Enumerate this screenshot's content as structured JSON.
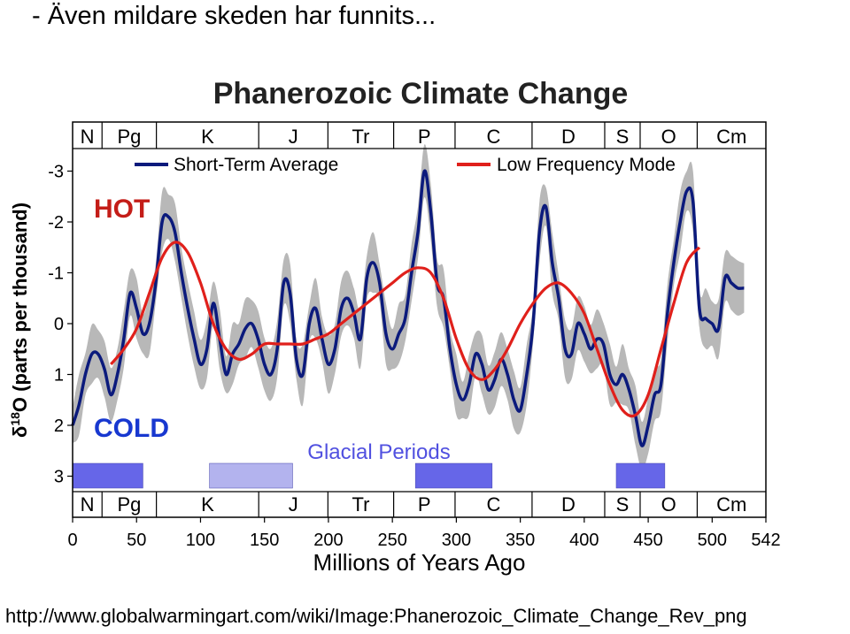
{
  "slide": {
    "title": "- Även mildare skeden har funnits...",
    "footer_url": "http://www.globalwarmingart.com/wiki/Image:Phanerozoic_Climate_Change_Rev_png"
  },
  "chart_data": {
    "type": "line",
    "title": "Phanerozoic Climate Change",
    "xlabel": "Millions of Years Ago",
    "ylabel": "δ18O (parts per thousand)",
    "xlim": [
      0,
      542
    ],
    "ylim": [
      -3.3,
      3.3
    ],
    "y_inverted": true,
    "x_ticks": [
      0,
      50,
      100,
      150,
      200,
      250,
      300,
      350,
      400,
      450,
      500,
      542
    ],
    "y_ticks": [
      -3,
      -2,
      -1,
      0,
      1,
      2,
      3
    ],
    "grid": false,
    "legend_position": "top",
    "annotations": {
      "hot": "HOT",
      "cold": "COLD",
      "glacial": "Glacial Periods"
    },
    "colors": {
      "short_term": "#0b1a7c",
      "low_freq": "#e0201b",
      "band": "#b8b8b8",
      "glacial_dark": "#6666e8",
      "glacial_light": "#b3b3ee",
      "hot": "#c41d18",
      "cold": "#1838d0",
      "glacial_text": "#5050e0"
    },
    "periods": [
      {
        "label": "N",
        "start": 0,
        "end": 23
      },
      {
        "label": "Pg",
        "start": 23,
        "end": 65.5
      },
      {
        "label": "K",
        "start": 65.5,
        "end": 145.5
      },
      {
        "label": "J",
        "start": 145.5,
        "end": 199.6
      },
      {
        "label": "Tr",
        "start": 199.6,
        "end": 251
      },
      {
        "label": "P",
        "start": 251,
        "end": 299
      },
      {
        "label": "C",
        "start": 299,
        "end": 359.2
      },
      {
        "label": "D",
        "start": 359.2,
        "end": 416
      },
      {
        "label": "S",
        "start": 416,
        "end": 443.7
      },
      {
        "label": "O",
        "start": 443.7,
        "end": 488.3
      },
      {
        "label": "Cm",
        "start": 488.3,
        "end": 542
      }
    ],
    "glacial_periods": [
      {
        "start": 0,
        "end": 55,
        "style": "dark"
      },
      {
        "start": 107,
        "end": 172,
        "style": "light"
      },
      {
        "start": 268,
        "end": 328,
        "style": "dark"
      },
      {
        "start": 425,
        "end": 463,
        "style": "dark"
      }
    ],
    "series": [
      {
        "name": "Short-Term Average",
        "x": [
          0,
          5,
          10,
          15,
          20,
          25,
          30,
          35,
          40,
          45,
          50,
          55,
          60,
          65,
          70,
          75,
          80,
          85,
          90,
          95,
          100,
          105,
          110,
          115,
          120,
          125,
          130,
          135,
          140,
          145,
          150,
          155,
          160,
          165,
          170,
          175,
          180,
          185,
          190,
          195,
          200,
          205,
          210,
          215,
          220,
          225,
          230,
          235,
          240,
          245,
          250,
          255,
          260,
          265,
          270,
          275,
          280,
          285,
          290,
          295,
          300,
          305,
          310,
          315,
          320,
          325,
          330,
          335,
          340,
          345,
          350,
          355,
          360,
          365,
          370,
          375,
          380,
          385,
          390,
          395,
          400,
          405,
          410,
          415,
          420,
          425,
          430,
          435,
          440,
          445,
          450,
          455,
          460,
          465,
          470,
          475,
          480,
          485,
          490,
          495,
          500,
          505,
          510,
          515,
          520,
          525
        ],
        "y": [
          2.0,
          1.6,
          1.0,
          0.6,
          0.6,
          0.9,
          1.4,
          1.0,
          0.3,
          -0.6,
          -0.3,
          0.2,
          0.0,
          -0.8,
          -2.0,
          -2.1,
          -1.8,
          -1.0,
          -0.3,
          0.3,
          0.8,
          0.5,
          -0.4,
          0.3,
          1.0,
          0.6,
          0.4,
          0.1,
          0.0,
          0.3,
          0.8,
          1.0,
          0.5,
          -0.8,
          -0.6,
          0.7,
          1.0,
          0.0,
          -0.3,
          0.3,
          0.8,
          0.5,
          -0.3,
          -0.5,
          -0.2,
          0.3,
          -0.9,
          -1.2,
          -0.8,
          0.2,
          0.5,
          0.2,
          -0.1,
          -1.0,
          -1.8,
          -3.0,
          -2.2,
          -0.8,
          -0.5,
          0.5,
          1.2,
          1.5,
          1.2,
          0.6,
          0.8,
          1.3,
          1.1,
          0.7,
          1.0,
          1.5,
          1.7,
          1.0,
          0.0,
          -1.8,
          -2.3,
          -1.2,
          -0.5,
          0.5,
          0.6,
          0.0,
          0.2,
          0.5,
          0.3,
          0.4,
          1.0,
          1.2,
          1.0,
          1.3,
          1.8,
          2.4,
          2.0,
          1.4,
          1.2,
          -0.2,
          -1.2,
          -2.0,
          -2.6,
          -2.4,
          -0.3,
          -0.1,
          0.0,
          0.1,
          -0.9,
          -0.8,
          -0.7,
          -0.7
        ]
      },
      {
        "name": "Low Frequency Mode",
        "x": [
          30,
          40,
          50,
          60,
          70,
          80,
          90,
          100,
          110,
          120,
          130,
          140,
          150,
          160,
          170,
          180,
          190,
          200,
          210,
          220,
          230,
          240,
          250,
          260,
          270,
          280,
          290,
          300,
          310,
          320,
          330,
          340,
          350,
          360,
          370,
          380,
          390,
          400,
          410,
          420,
          430,
          440,
          450,
          460,
          470,
          480,
          490
        ],
        "y": [
          0.8,
          0.5,
          0.1,
          -0.6,
          -1.3,
          -1.6,
          -1.4,
          -0.8,
          0.0,
          0.5,
          0.7,
          0.6,
          0.4,
          0.4,
          0.4,
          0.4,
          0.3,
          0.2,
          0.0,
          -0.2,
          -0.4,
          -0.6,
          -0.8,
          -1.0,
          -1.1,
          -1.0,
          -0.5,
          0.3,
          0.9,
          1.1,
          0.9,
          0.5,
          0.0,
          -0.4,
          -0.7,
          -0.8,
          -0.6,
          -0.2,
          0.5,
          1.2,
          1.7,
          1.8,
          1.4,
          0.5,
          -0.4,
          -1.2,
          -1.5
        ]
      }
    ]
  }
}
